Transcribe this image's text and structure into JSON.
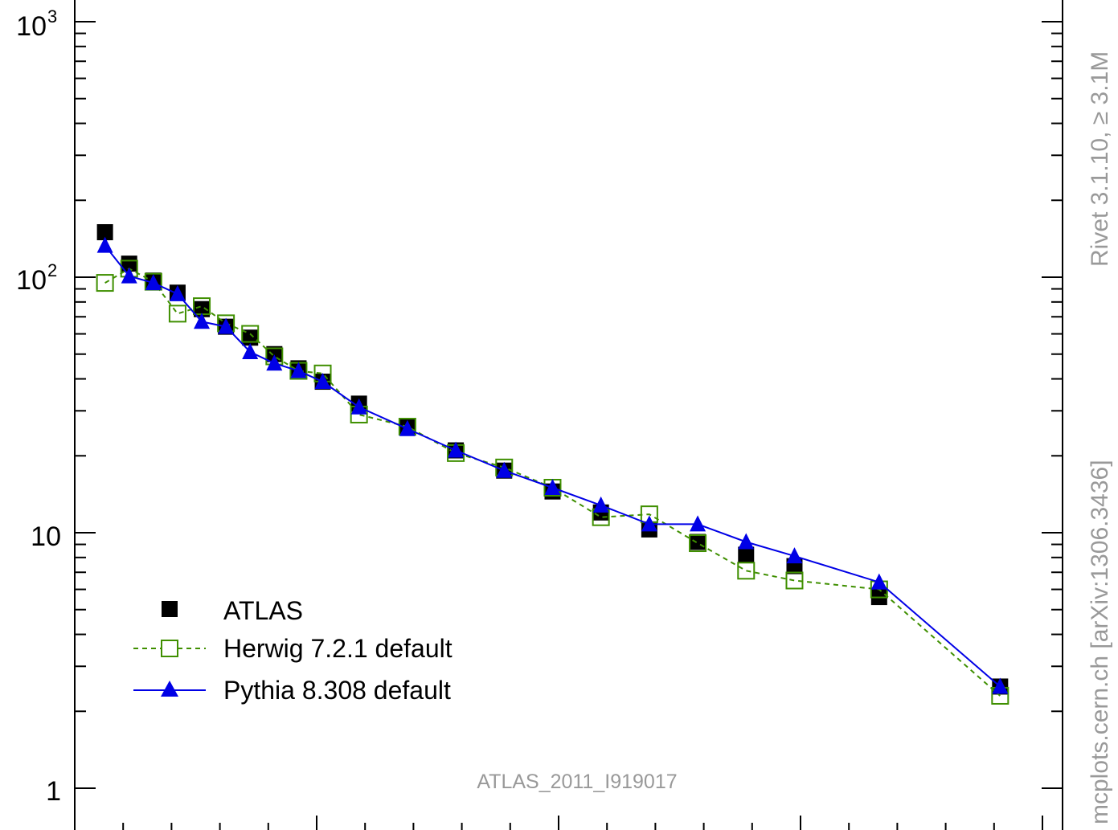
{
  "chart_data": {
    "type": "scatter",
    "yscale": "log",
    "ylim": [
      1,
      1000
    ],
    "xlim": [
      0,
      38
    ],
    "grid": false,
    "legend_position": "bottom-left",
    "y_tick_labels": [
      "1",
      "10",
      "10",
      "10"
    ],
    "y_tick_label_exponents": [
      "",
      "",
      "2",
      "3"
    ],
    "watermark": "ATLAS_2011_I919017",
    "side_label_top": "Rivet 3.1.10, ≥ 3.1M",
    "side_label_bottom": "mcplots.cern.ch [arXiv:1306.3436]",
    "series": [
      {
        "name": "ATLAS",
        "color": "#000000",
        "marker": "filled-square",
        "x": [
          1.25,
          2.25,
          3.25,
          4.25,
          5.25,
          6.25,
          7.25,
          8.25,
          9.25,
          10.25,
          11.75,
          13.75,
          15.75,
          17.75,
          19.75,
          21.75,
          23.75,
          25.75,
          27.75,
          29.75,
          33.25,
          38.25
        ],
        "y": [
          150,
          113,
          97,
          87,
          75,
          64,
          58,
          50,
          44,
          39,
          32,
          26,
          21,
          17.5,
          14.5,
          12,
          10.3,
          9.2,
          8.2,
          7.4,
          5.6,
          2.5
        ]
      },
      {
        "name": "Herwig 7.2.1 default",
        "color": "#3f8f00",
        "marker": "open-square",
        "line": "dashed",
        "x": [
          1.25,
          2.25,
          3.25,
          4.25,
          5.25,
          6.25,
          7.25,
          8.25,
          9.25,
          10.25,
          11.75,
          13.75,
          15.75,
          17.75,
          19.75,
          21.75,
          23.75,
          25.75,
          27.75,
          29.75,
          33.25,
          38.25
        ],
        "y": [
          95,
          108,
          96,
          72,
          77,
          66,
          60,
          49,
          43,
          42,
          29,
          26,
          20.5,
          18,
          15,
          11.5,
          11.8,
          9.1,
          7.1,
          6.5,
          6,
          2.3
        ]
      },
      {
        "name": "Pythia 8.308 default",
        "color": "#0000e6",
        "marker": "filled-triangle",
        "line": "solid",
        "x": [
          1.25,
          2.25,
          3.25,
          4.25,
          5.25,
          6.25,
          7.25,
          8.25,
          9.25,
          10.25,
          11.75,
          13.75,
          15.75,
          17.75,
          19.75,
          21.75,
          23.75,
          25.75,
          27.75,
          29.75,
          33.25,
          38.25
        ],
        "y": [
          133,
          101,
          95,
          86,
          67,
          64,
          51,
          46,
          43,
          39,
          31,
          25.5,
          21,
          17.5,
          15,
          12.8,
          10.8,
          10.8,
          9.2,
          8.1,
          6.4,
          2.5
        ]
      }
    ]
  }
}
